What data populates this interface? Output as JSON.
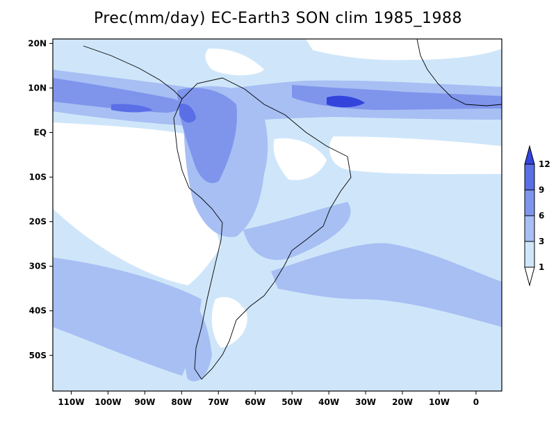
{
  "title": "Prec(mm/day) EC-Earth3 SON clim 1985_1988",
  "map": {
    "lon_range": [
      -115,
      7
    ],
    "lat_range": [
      -58,
      21
    ],
    "x_ticks": [
      {
        "lon": -110,
        "label": "110W"
      },
      {
        "lon": -100,
        "label": "100W"
      },
      {
        "lon": -90,
        "label": "90W"
      },
      {
        "lon": -80,
        "label": "80W"
      },
      {
        "lon": -70,
        "label": "70W"
      },
      {
        "lon": -60,
        "label": "60W"
      },
      {
        "lon": -50,
        "label": "50W"
      },
      {
        "lon": -40,
        "label": "40W"
      },
      {
        "lon": -30,
        "label": "30W"
      },
      {
        "lon": -20,
        "label": "20W"
      },
      {
        "lon": -10,
        "label": "10W"
      },
      {
        "lon": 0,
        "label": "0"
      }
    ],
    "y_ticks": [
      {
        "lat": 20,
        "label": "20N"
      },
      {
        "lat": 10,
        "label": "10N"
      },
      {
        "lat": 0,
        "label": "EQ"
      },
      {
        "lat": -10,
        "label": "10S"
      },
      {
        "lat": -20,
        "label": "20S"
      },
      {
        "lat": -30,
        "label": "30S"
      },
      {
        "lat": -40,
        "label": "40S"
      },
      {
        "lat": -50,
        "label": "50S"
      }
    ]
  },
  "colorbar": {
    "levels": [
      "1",
      "3",
      "6",
      "9",
      "12"
    ],
    "colors": [
      "#ffffff",
      "#cfe6fa",
      "#a7bff3",
      "#7f95ec",
      "#5a6ee6",
      "#3344dd"
    ]
  }
}
